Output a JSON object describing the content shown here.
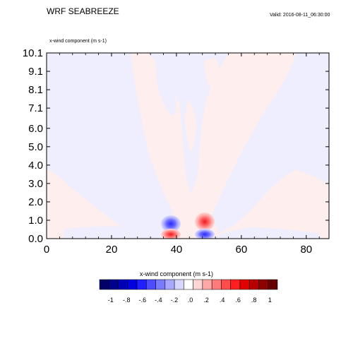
{
  "header": {
    "title": "WRF SEABREEZE",
    "valid": "Valid: 2016-08-11_06:30:00",
    "field_label": "x-wind component   (m s-1)"
  },
  "colorbar": {
    "title": "x-wind component  (m s-1)",
    "labels": [
      "-1",
      "-.8",
      "-.6",
      "-.4",
      "-.2",
      ".0",
      ".2",
      ".4",
      ".6",
      ".8",
      "1"
    ],
    "colors": [
      "#000066",
      "#00008f",
      "#0000b8",
      "#0000e0",
      "#1f1fff",
      "#4d4dff",
      "#7a7aff",
      "#a8a8ff",
      "#d6d6ff",
      "#ffffff",
      "#ffd6d6",
      "#ffa8a8",
      "#ff7a7a",
      "#ff4d4d",
      "#ff1f1f",
      "#e00000",
      "#b80000",
      "#8f0000",
      "#660000"
    ]
  },
  "chart_data": {
    "type": "heatmap",
    "variable": "x-wind component",
    "units": "m s-1",
    "x_ticks": [
      0,
      20,
      40,
      60,
      80
    ],
    "y_ticks": [
      0.0,
      1.0,
      2.0,
      3.0,
      4.0,
      5.0,
      6.0,
      7.1,
      8.1,
      9.1,
      10.1
    ],
    "y_tick_labels": [
      "0.0",
      "1.0",
      "2.0",
      "3.0",
      "4.0",
      "5.0",
      "6.0",
      "7.1",
      "8.1",
      "9.1",
      "10.1"
    ],
    "xlim": [
      0,
      87
    ],
    "ylim": [
      0,
      10.1
    ],
    "background_regions": [
      {
        "value": 0.02,
        "color": "#ffeeee"
      },
      {
        "value": -0.02,
        "color": "#eeeefe"
      }
    ],
    "features": [
      {
        "x": 38.5,
        "y": 0.9,
        "min": -0.6
      },
      {
        "x": 38.5,
        "y": 0.2,
        "max": 0.6
      },
      {
        "x": 48.5,
        "y": 0.9,
        "max": 0.6
      },
      {
        "x": 48.5,
        "y": 0.2,
        "min": -0.6
      }
    ]
  }
}
